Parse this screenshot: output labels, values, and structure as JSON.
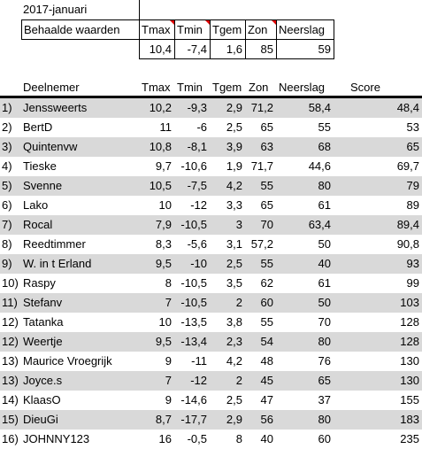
{
  "header": {
    "month": "2017-januari",
    "achieved_label": "Behaalde waarden",
    "columns": [
      "Tmax",
      "Tmin",
      "Tgem",
      "Zon",
      "Neerslag"
    ],
    "achieved_values": [
      "10,4",
      "-7,4",
      "1,6",
      "85",
      "59"
    ]
  },
  "table": {
    "headers": {
      "participant": "Deelnemer",
      "tmax": "Tmax",
      "tmin": "Tmin",
      "tgem": "Tgem",
      "zon": "Zon",
      "neerslag": "Neerslag",
      "score": "Score"
    },
    "rows": [
      {
        "rank": "1)",
        "name": "Jenssweerts",
        "tmax": "10,2",
        "tmin": "-9,3",
        "tgem": "2,9",
        "zon": "71,2",
        "neerslag": "58,4",
        "score": "48,4"
      },
      {
        "rank": "2)",
        "name": "BertD",
        "tmax": "11",
        "tmin": "-6",
        "tgem": "2,5",
        "zon": "65",
        "neerslag": "55",
        "score": "53"
      },
      {
        "rank": "3)",
        "name": "Quintenvw",
        "tmax": "10,8",
        "tmin": "-8,1",
        "tgem": "3,9",
        "zon": "63",
        "neerslag": "68",
        "score": "65"
      },
      {
        "rank": "4)",
        "name": "Tieske",
        "tmax": "9,7",
        "tmin": "-10,6",
        "tgem": "1,9",
        "zon": "71,7",
        "neerslag": "44,6",
        "score": "69,7"
      },
      {
        "rank": "5)",
        "name": "Svenne",
        "tmax": "10,5",
        "tmin": "-7,5",
        "tgem": "4,2",
        "zon": "55",
        "neerslag": "80",
        "score": "79"
      },
      {
        "rank": "6)",
        "name": "Lako",
        "tmax": "10",
        "tmin": "-12",
        "tgem": "3,3",
        "zon": "65",
        "neerslag": "61",
        "score": "89"
      },
      {
        "rank": "7)",
        "name": "Rocal",
        "tmax": "7,9",
        "tmin": "-10,5",
        "tgem": "3",
        "zon": "70",
        "neerslag": "63,4",
        "score": "89,4"
      },
      {
        "rank": "8)",
        "name": "Reedtimmer",
        "tmax": "8,3",
        "tmin": "-5,6",
        "tgem": "3,1",
        "zon": "57,2",
        "neerslag": "50",
        "score": "90,8"
      },
      {
        "rank": "9)",
        "name": "W. in t Erland",
        "tmax": "9,5",
        "tmin": "-10",
        "tgem": "2,5",
        "zon": "55",
        "neerslag": "40",
        "score": "93"
      },
      {
        "rank": "10)",
        "name": "Raspy",
        "tmax": "8",
        "tmin": "-10,5",
        "tgem": "3,5",
        "zon": "62",
        "neerslag": "61",
        "score": "99"
      },
      {
        "rank": "11)",
        "name": "Stefanv",
        "tmax": "7",
        "tmin": "-10,5",
        "tgem": "2",
        "zon": "60",
        "neerslag": "50",
        "score": "103"
      },
      {
        "rank": "12)",
        "name": "Tatanka",
        "tmax": "10",
        "tmin": "-13,5",
        "tgem": "3,8",
        "zon": "55",
        "neerslag": "70",
        "score": "128"
      },
      {
        "rank": "12)",
        "name": "Weertje",
        "tmax": "9,5",
        "tmin": "-13,4",
        "tgem": "2,3",
        "zon": "54",
        "neerslag": "80",
        "score": "128"
      },
      {
        "rank": "13)",
        "name": "Maurice Vroegrijk",
        "tmax": "9",
        "tmin": "-11",
        "tgem": "4,2",
        "zon": "48",
        "neerslag": "76",
        "score": "130"
      },
      {
        "rank": "13)",
        "name": "Joyce.s",
        "tmax": "7",
        "tmin": "-12",
        "tgem": "2",
        "zon": "45",
        "neerslag": "65",
        "score": "130"
      },
      {
        "rank": "14)",
        "name": "KlaasO",
        "tmax": "9",
        "tmin": "-14,6",
        "tgem": "2,5",
        "zon": "47",
        "neerslag": "37",
        "score": "155"
      },
      {
        "rank": "15)",
        "name": "DieuGi",
        "tmax": "8,7",
        "tmin": "-17,7",
        "tgem": "2,9",
        "zon": "56",
        "neerslag": "80",
        "score": "183"
      },
      {
        "rank": "16)",
        "name": "JOHNNY123",
        "tmax": "16",
        "tmin": "-0,5",
        "tgem": "8",
        "zon": "40",
        "neerslag": "60",
        "score": "235"
      }
    ]
  }
}
